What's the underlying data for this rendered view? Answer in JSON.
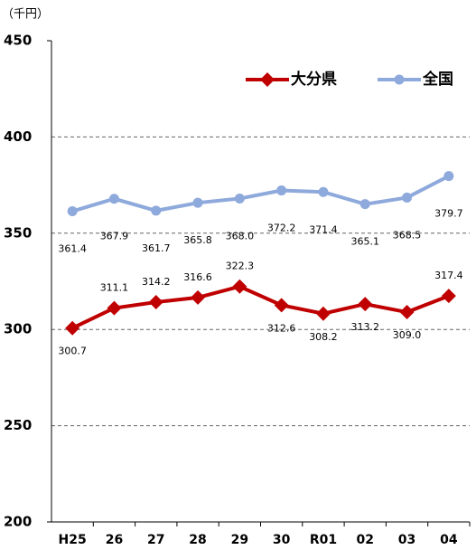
{
  "chart_data": {
    "type": "line",
    "y_label": "（千円）",
    "categories": [
      "H25",
      "26",
      "27",
      "28",
      "29",
      "30",
      "R01",
      "02",
      "03",
      "04"
    ],
    "series": [
      {
        "name": "大分県",
        "color": "#c00000",
        "marker": "diamond",
        "values": [
          300.7,
          311.1,
          314.2,
          316.6,
          322.3,
          312.6,
          308.2,
          313.2,
          309.0,
          317.4
        ],
        "value_labels": [
          "300.7",
          "311.1",
          "314.2",
          "316.6",
          "322.3",
          "312.6",
          "308.2",
          "313.2",
          "309.0",
          "317.4"
        ]
      },
      {
        "name": "全国",
        "color": "#8ea9db",
        "marker": "circle",
        "values": [
          361.4,
          367.9,
          361.7,
          365.8,
          368.0,
          372.2,
          371.4,
          365.1,
          368.5,
          379.7
        ],
        "value_labels": [
          "361.4",
          "367.9",
          "361.7",
          "365.8",
          "368.0",
          "372.2",
          "371.4",
          "365.1",
          "368.5",
          "379.7"
        ]
      }
    ],
    "ylim": [
      200,
      450
    ],
    "yticks": [
      200,
      250,
      300,
      350,
      400,
      450
    ],
    "grid": true,
    "legend": "top-right"
  }
}
